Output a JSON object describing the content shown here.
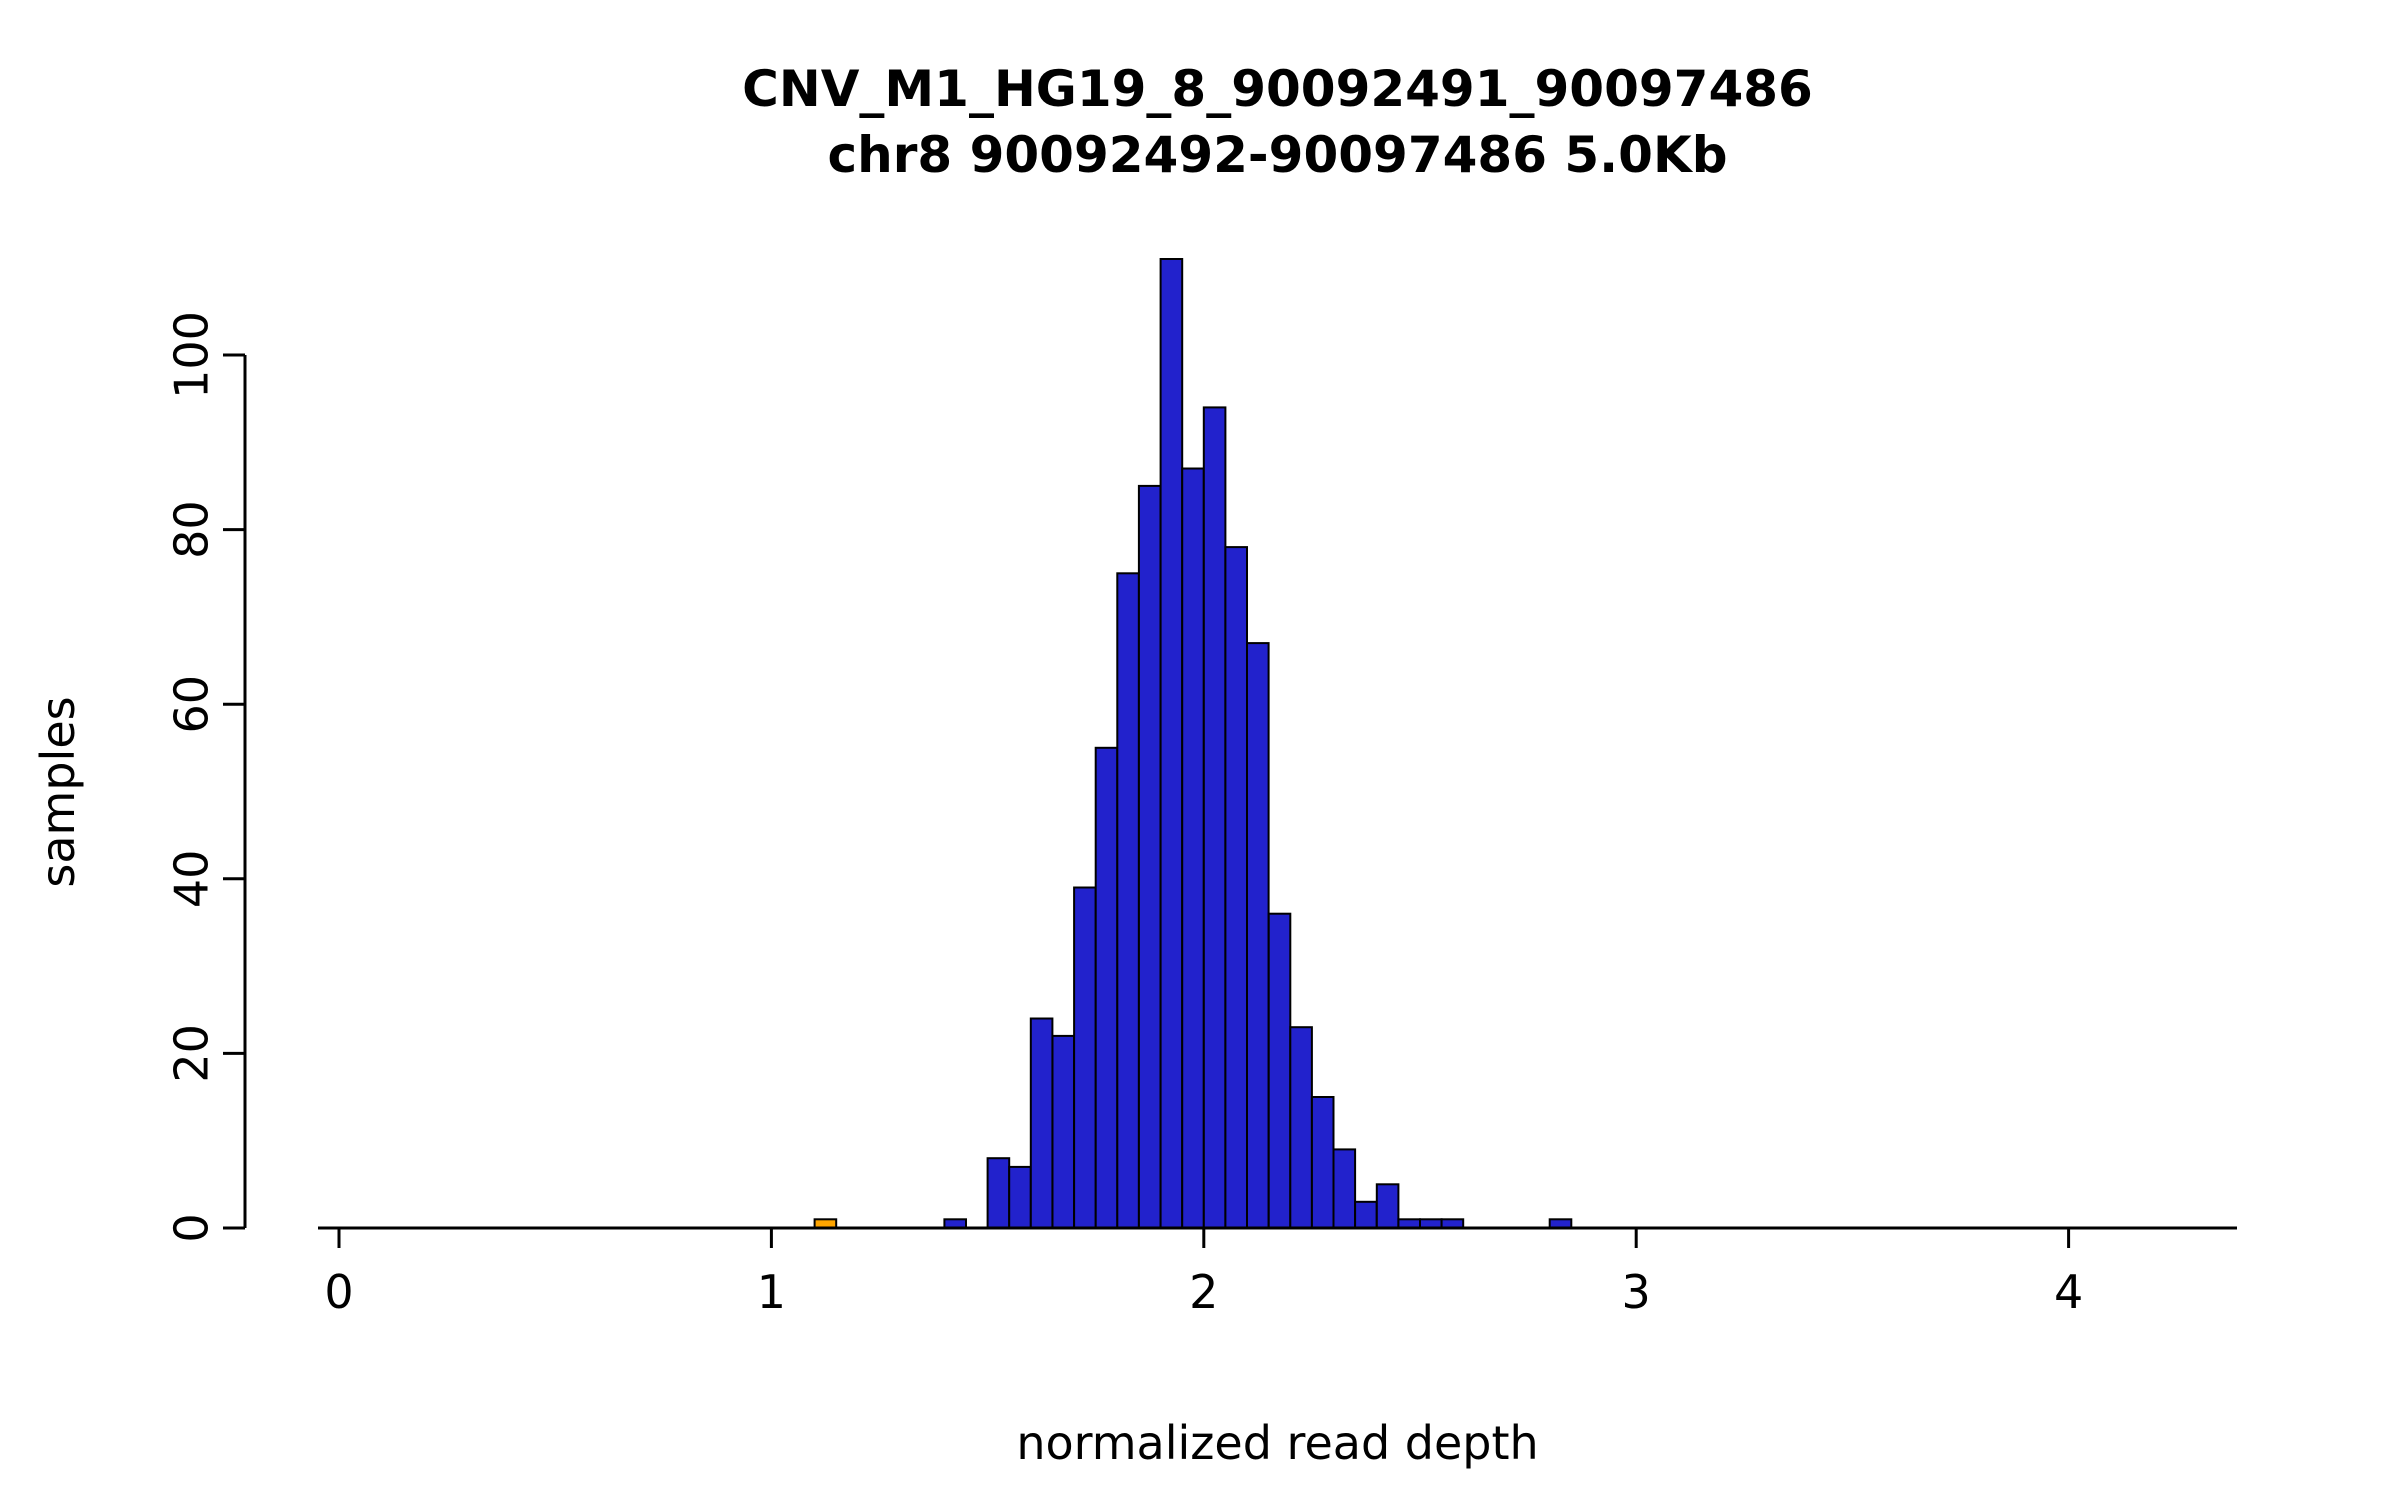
{
  "figure": {
    "background": "#ffffff"
  },
  "chart_data": {
    "type": "bar",
    "subtype": "histogram",
    "title": "CNV_M1_HG19_8_90092491_90097486",
    "subtitle": "chr8 90092492-90097486 5.0Kb",
    "xlabel": "normalized read depth",
    "ylabel": "samples",
    "xlim": [
      -0.05,
      4.39
    ],
    "ylim": [
      0,
      111
    ],
    "x_ticks": [
      0,
      1,
      2,
      3,
      4
    ],
    "y_ticks": [
      0,
      20,
      40,
      60,
      80,
      100
    ],
    "grid": false,
    "legend": "none",
    "bin_width": 0.05,
    "axis_color": "#000000",
    "bar_fill": "#2222cc",
    "bar_stroke": "#000000",
    "highlight_fill": "#ffa500",
    "bars": [
      {
        "x": 1.1,
        "count": 1,
        "color": "highlight"
      },
      {
        "x": 1.4,
        "count": 1
      },
      {
        "x": 1.5,
        "count": 8
      },
      {
        "x": 1.55,
        "count": 7
      },
      {
        "x": 1.6,
        "count": 24
      },
      {
        "x": 1.65,
        "count": 22
      },
      {
        "x": 1.7,
        "count": 39
      },
      {
        "x": 1.75,
        "count": 55
      },
      {
        "x": 1.8,
        "count": 75
      },
      {
        "x": 1.85,
        "count": 85
      },
      {
        "x": 1.9,
        "count": 111
      },
      {
        "x": 1.95,
        "count": 87
      },
      {
        "x": 2.0,
        "count": 94
      },
      {
        "x": 2.05,
        "count": 78
      },
      {
        "x": 2.1,
        "count": 67
      },
      {
        "x": 2.15,
        "count": 36
      },
      {
        "x": 2.2,
        "count": 23
      },
      {
        "x": 2.25,
        "count": 15
      },
      {
        "x": 2.3,
        "count": 9
      },
      {
        "x": 2.35,
        "count": 3
      },
      {
        "x": 2.4,
        "count": 5
      },
      {
        "x": 2.45,
        "count": 1
      },
      {
        "x": 2.5,
        "count": 1
      },
      {
        "x": 2.55,
        "count": 1
      },
      {
        "x": 2.8,
        "count": 1
      }
    ]
  }
}
